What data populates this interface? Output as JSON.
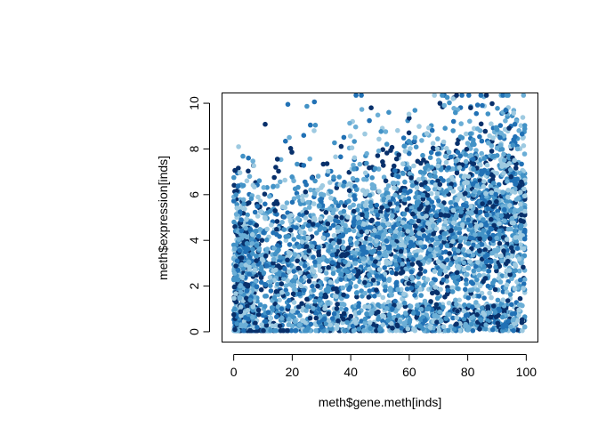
{
  "chart_data": {
    "type": "scatter",
    "title": "",
    "xlabel": "meth$gene.meth[inds]",
    "ylabel": "meth$expression[inds]",
    "xlim": [
      -4,
      104
    ],
    "ylim": [
      -0.45,
      10.45
    ],
    "x_ticks": [
      "0",
      "20",
      "40",
      "60",
      "80",
      "100"
    ],
    "y_ticks": [
      "0",
      "2",
      "4",
      "6",
      "8",
      "10"
    ],
    "grid": false,
    "legend": "none",
    "colors": [
      "#08306B",
      "#2171B5",
      "#4292C6",
      "#6BAED6",
      "#9ECAE1"
    ],
    "n_points": 4500,
    "points": [
      [
        0.4,
        0.1
      ],
      [
        1.2,
        3.1
      ],
      [
        2.0,
        1.5
      ],
      [
        4.0,
        0.3
      ],
      [
        8.0,
        0.2
      ],
      [
        18.5,
        9.95
      ],
      [
        19.0,
        8.5
      ],
      [
        27.5,
        8.8
      ],
      [
        47.0,
        9.8
      ],
      [
        53.0,
        9.6
      ],
      [
        70.5,
        10.0
      ],
      [
        72.0,
        9.9
      ],
      [
        73.0,
        10.25
      ],
      [
        75.0,
        10.2
      ],
      [
        81.0,
        9.8
      ],
      [
        84.5,
        10.35
      ],
      [
        85.0,
        9.9
      ],
      [
        88.0,
        9.1
      ],
      [
        92.0,
        9.6
      ],
      [
        93.0,
        9.7
      ],
      [
        96.0,
        7.5
      ],
      [
        97.0,
        8.0
      ],
      [
        98.0,
        6.1
      ],
      [
        99.0,
        1.9
      ],
      [
        98.5,
        0.4
      ],
      [
        92.0,
        0.2
      ],
      [
        50.0,
        0.1
      ],
      [
        30.0,
        0.2
      ],
      [
        62.0,
        8.5
      ],
      [
        75.0,
        8.8
      ]
    ]
  }
}
